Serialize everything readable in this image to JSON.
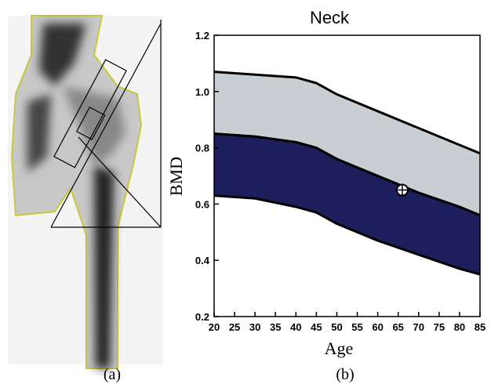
{
  "chart_data": {
    "type": "band",
    "title": "Neck",
    "xlabel": "Age",
    "ylabel": "BMD",
    "captions": [
      "(a)",
      "(b)"
    ],
    "x": [
      20,
      30,
      40,
      45,
      50,
      60,
      70,
      80,
      85
    ],
    "bands": [
      {
        "color": "#c9ced3",
        "upper": [
          1.07,
          1.06,
          1.05,
          1.03,
          0.99,
          0.93,
          0.87,
          0.81,
          0.78
        ],
        "lower": [
          0.85,
          0.84,
          0.82,
          0.8,
          0.76,
          0.7,
          0.64,
          0.59,
          0.56
        ]
      },
      {
        "color": "#1d1f5c",
        "upper": [
          0.85,
          0.84,
          0.82,
          0.8,
          0.76,
          0.7,
          0.64,
          0.59,
          0.56
        ],
        "lower": [
          0.63,
          0.62,
          0.59,
          0.57,
          0.53,
          0.47,
          0.42,
          0.37,
          0.35
        ]
      }
    ],
    "points": {
      "x": [
        66
      ],
      "values": [
        0.65
      ]
    },
    "xlim": [
      20,
      85
    ],
    "ylim": [
      0.2,
      1.2
    ],
    "xticks": [
      20,
      25,
      30,
      35,
      40,
      45,
      50,
      55,
      60,
      65,
      70,
      75,
      80,
      85
    ],
    "yticks": [
      0.2,
      0.4,
      0.6,
      0.8,
      {
        "value": 1,
        "label": "1.0"
      },
      1.2
    ]
  }
}
